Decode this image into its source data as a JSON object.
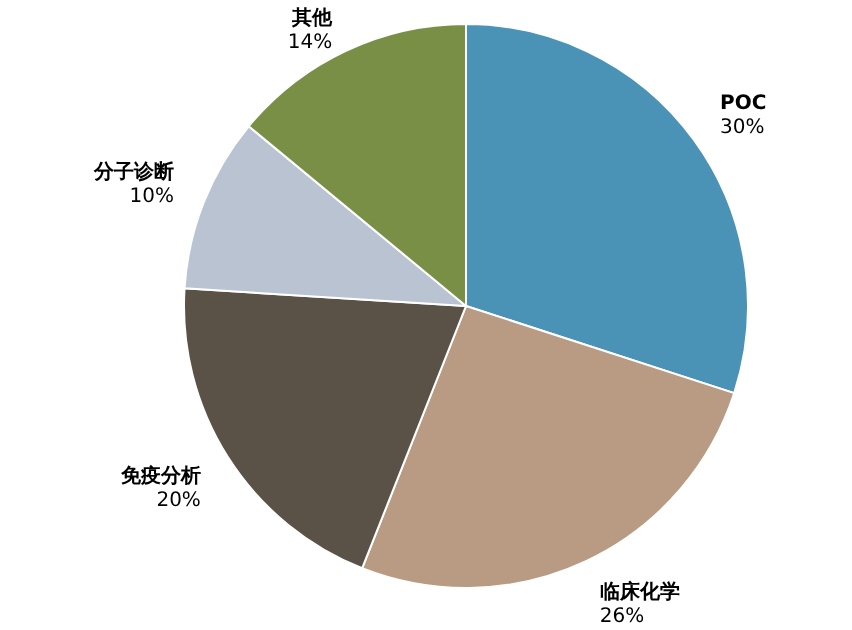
{
  "chart_data": {
    "type": "pie",
    "categories": [
      "POC",
      "临床化学",
      "免疫分析",
      "分子诊断",
      "其他"
    ],
    "values": [
      30,
      26,
      20,
      10,
      14
    ],
    "value_labels": [
      "30%",
      "26%",
      "20%",
      "10%",
      "14%"
    ],
    "colors": [
      "#4a93b6",
      "#b89b82",
      "#5a5147",
      "#b9c3d2",
      "#7a8f46"
    ]
  }
}
